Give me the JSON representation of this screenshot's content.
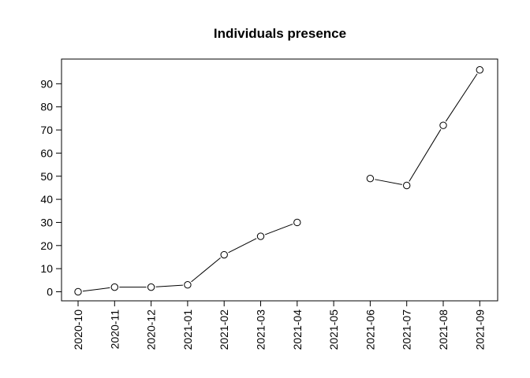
{
  "chart_data": {
    "type": "line",
    "title": "Individuals presence",
    "xlabel": "",
    "ylabel": "",
    "categories": [
      "2020-10",
      "2020-11",
      "2020-12",
      "2021-01",
      "2021-02",
      "2021-03",
      "2021-04",
      "2021-05",
      "2021-06",
      "2021-07",
      "2021-08",
      "2021-09"
    ],
    "values": [
      0,
      2,
      2,
      3,
      16,
      24,
      30,
      null,
      49,
      46,
      72,
      96
    ],
    "ylim": [
      -4,
      100
    ],
    "yticks": [
      0,
      10,
      20,
      30,
      40,
      50,
      60,
      70,
      80,
      90
    ],
    "grid": false,
    "legend": "none",
    "colors": {
      "line": "#000000",
      "point_fill": "#ffffff",
      "point_stroke": "#000000"
    }
  }
}
